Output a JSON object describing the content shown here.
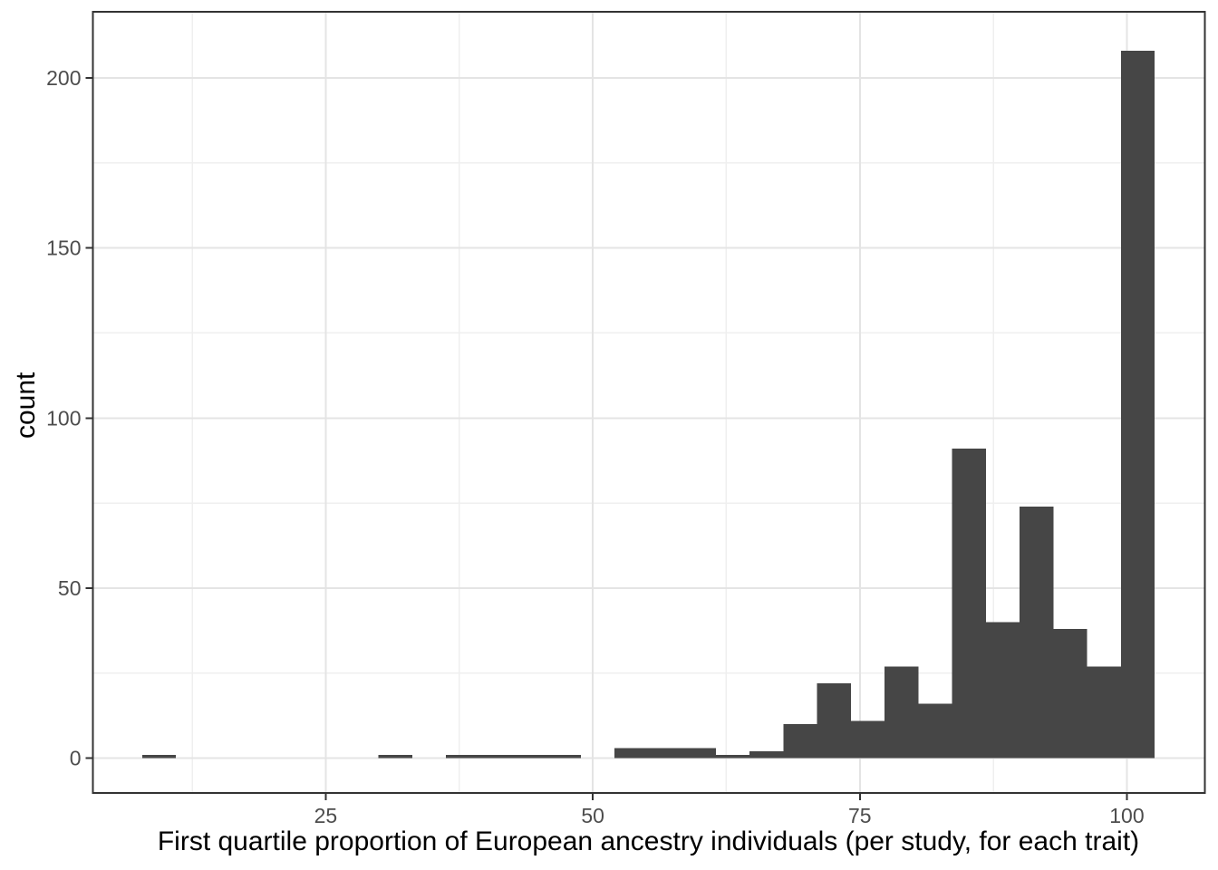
{
  "chart_data": {
    "type": "bar",
    "subtype": "histogram",
    "title": "",
    "xlabel": "First quartile proportion of European ancestry individuals (per study, for each trait)",
    "ylabel": "count",
    "x_ticks": [
      25,
      50,
      75,
      100
    ],
    "y_ticks": [
      0,
      50,
      100,
      150,
      200
    ],
    "x_minor_gridlines": [
      12.5,
      37.5,
      62.5,
      87.5
    ],
    "y_minor_gridlines": [
      25,
      75,
      125,
      175
    ],
    "xlim": [
      3.2,
      107.3
    ],
    "ylim": [
      -10.2,
      219.4
    ],
    "grid": true,
    "legend": "none",
    "bins": {
      "first_edge": 7.82,
      "binwidth": 3.159,
      "counts": [
        1,
        0,
        0,
        0,
        0,
        0,
        0,
        1,
        0,
        1,
        1,
        1,
        1,
        0,
        3,
        3,
        3,
        1,
        2,
        10,
        22,
        11,
        27,
        16,
        91,
        40,
        74,
        38,
        27,
        208
      ]
    },
    "colors": {
      "bar_fill": "#464646",
      "grid_major": "#E4E4E4",
      "grid_minor": "#EFEFEF",
      "panel_border": "#333333",
      "tick_mark": "#333333",
      "tick_label": "#4D4D4D",
      "axis_title": "#000000",
      "background": "#FFFFFF"
    }
  }
}
